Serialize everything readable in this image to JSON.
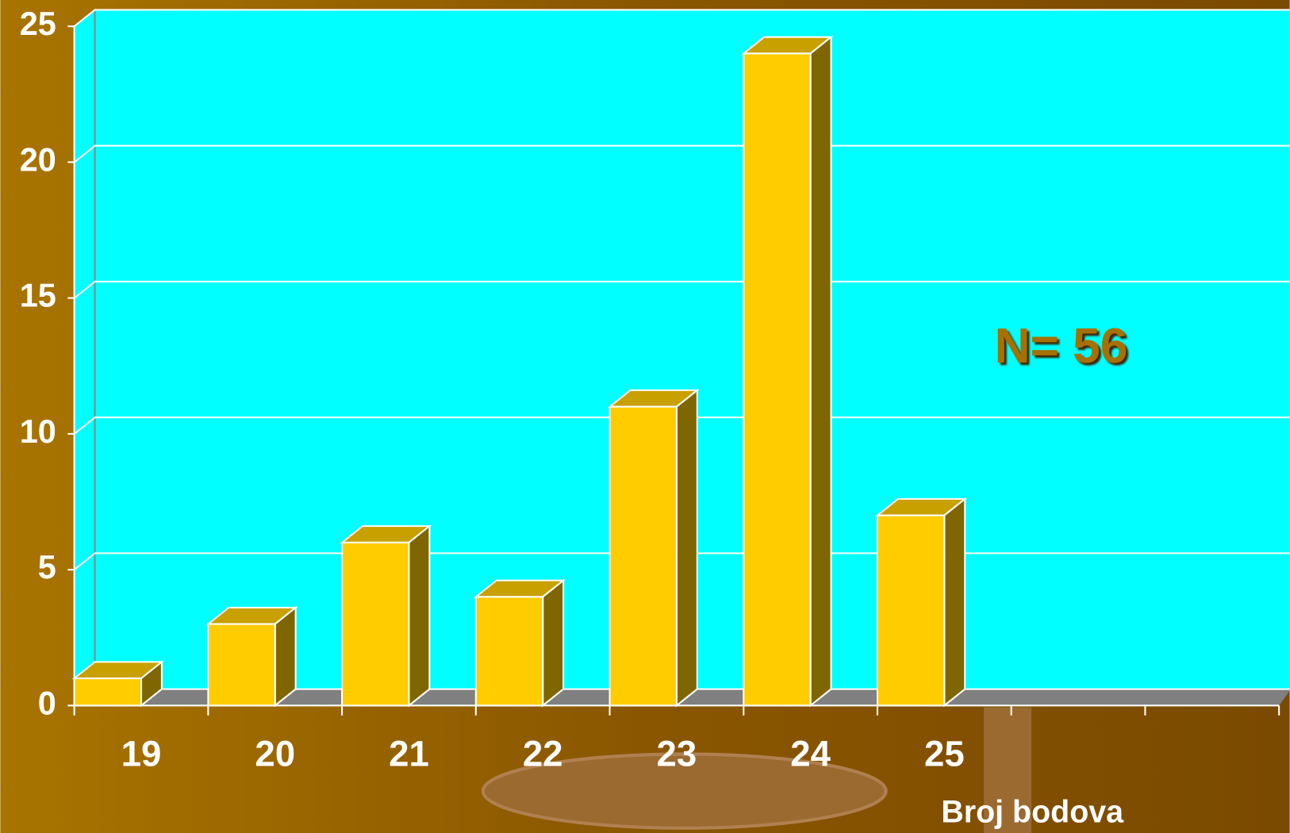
{
  "chart_data": {
    "type": "bar3d",
    "categories": [
      "19",
      "20",
      "21",
      "22",
      "23",
      "24",
      "25",
      null,
      null
    ],
    "values": [
      1,
      3,
      6,
      4,
      11,
      24,
      7,
      null,
      null
    ],
    "color": "#ffcc00",
    "ylim": [
      0,
      25
    ],
    "yticks": [
      0,
      5,
      10,
      15,
      20,
      25
    ],
    "grid": true,
    "xlabel": "Broj bodova",
    "annotation": "N= 56"
  }
}
